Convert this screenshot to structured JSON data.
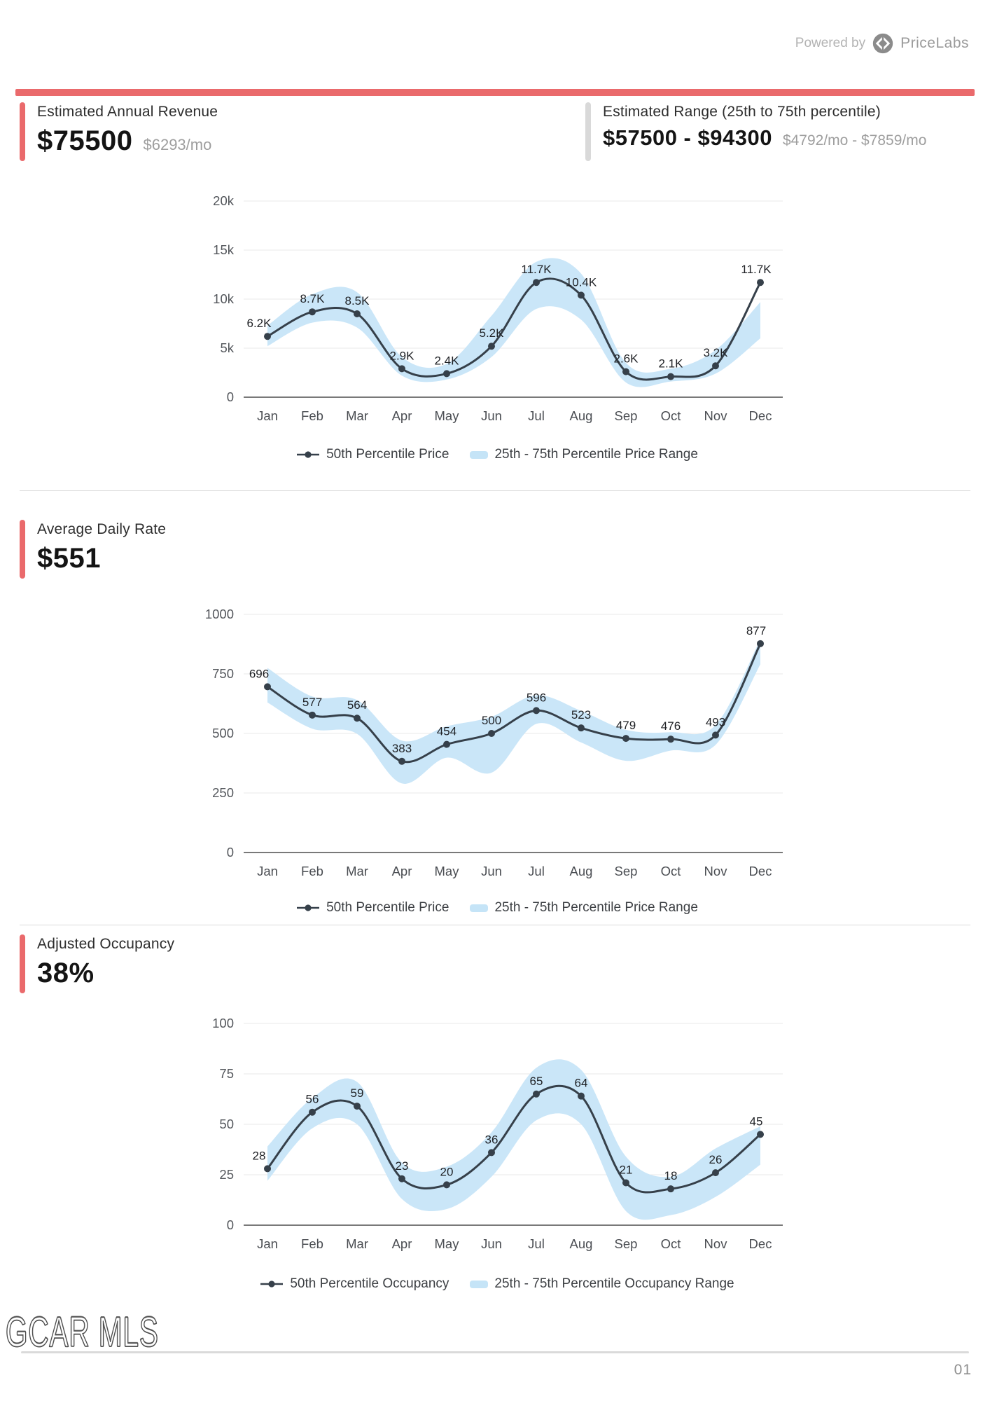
{
  "header": {
    "powered_by": "Powered by",
    "brand": "PriceLabs"
  },
  "metrics": {
    "revenue": {
      "title": "Estimated Annual Revenue",
      "value": "$75500",
      "sub": "$6293/mo"
    },
    "range": {
      "title": "Estimated Range (25th to 75th percentile)",
      "value": "$57500 - $94300",
      "sub": "$4792/mo - $7859/mo"
    },
    "adr": {
      "title": "Average Daily Rate",
      "value": "$551"
    },
    "occupancy": {
      "title": "Adjusted Occupancy",
      "value": "38%"
    }
  },
  "chart_data": [
    {
      "type": "line",
      "title": "Estimated Annual Revenue by month",
      "categories": [
        "Jan",
        "Feb",
        "Mar",
        "Apr",
        "May",
        "Jun",
        "Jul",
        "Aug",
        "Sep",
        "Oct",
        "Nov",
        "Dec"
      ],
      "series": [
        {
          "name": "50th Percentile Price",
          "values": [
            6200,
            8700,
            8500,
            2900,
            2400,
            5200,
            11700,
            10400,
            2600,
            2100,
            3200,
            11700
          ]
        }
      ],
      "point_labels": [
        "6.2K",
        "8.7K",
        "8.5K",
        "2.9K",
        "2.4K",
        "5.2K",
        "11.7K",
        "10.4K",
        "2.6K",
        "2.1K",
        "3.2K",
        "11.7K"
      ],
      "band": {
        "name": "25th - 75th Percentile Price Range",
        "lower": [
          5200,
          7600,
          7100,
          2200,
          1800,
          4100,
          9000,
          7900,
          1500,
          1600,
          2400,
          6000
        ],
        "upper": [
          7300,
          10500,
          10700,
          4100,
          3400,
          8300,
          13800,
          12600,
          3500,
          2900,
          4800,
          9700
        ]
      },
      "ylim": [
        0,
        20000
      ],
      "yticks": [
        {
          "value": 0,
          "label": "0"
        },
        {
          "value": 5000,
          "label": "5k"
        },
        {
          "value": 10000,
          "label": "10k"
        },
        {
          "value": 15000,
          "label": "15k"
        },
        {
          "value": 20000,
          "label": "20k"
        }
      ],
      "grid": true,
      "legend_position": "bottom",
      "legend": [
        "50th Percentile Price",
        "25th - 75th Percentile Price Range"
      ]
    },
    {
      "type": "line",
      "title": "Average Daily Rate by month",
      "categories": [
        "Jan",
        "Feb",
        "Mar",
        "Apr",
        "May",
        "Jun",
        "Jul",
        "Aug",
        "Sep",
        "Oct",
        "Nov",
        "Dec"
      ],
      "series": [
        {
          "name": "50th Percentile Price",
          "values": [
            696,
            577,
            564,
            383,
            454,
            500,
            596,
            523,
            479,
            476,
            493,
            877
          ]
        }
      ],
      "point_labels": [
        "696",
        "577",
        "564",
        "383",
        "454",
        "500",
        "596",
        "523",
        "479",
        "476",
        "493",
        "877"
      ],
      "band": {
        "name": "25th - 75th Percentile Price Range",
        "lower": [
          630,
          520,
          498,
          290,
          398,
          335,
          540,
          462,
          385,
          428,
          452,
          790
        ],
        "upper": [
          775,
          655,
          640,
          470,
          530,
          570,
          660,
          595,
          515,
          505,
          535,
          895
        ]
      },
      "ylim": [
        0,
        1000
      ],
      "yticks": [
        {
          "value": 0,
          "label": "0"
        },
        {
          "value": 250,
          "label": "250"
        },
        {
          "value": 500,
          "label": "500"
        },
        {
          "value": 750,
          "label": "750"
        },
        {
          "value": 1000,
          "label": "1000"
        }
      ],
      "grid": true,
      "legend_position": "bottom",
      "legend": [
        "50th Percentile Price",
        "25th - 75th Percentile Price Range"
      ]
    },
    {
      "type": "line",
      "title": "Adjusted Occupancy by month",
      "categories": [
        "Jan",
        "Feb",
        "Mar",
        "Apr",
        "May",
        "Jun",
        "Jul",
        "Aug",
        "Sep",
        "Oct",
        "Nov",
        "Dec"
      ],
      "series": [
        {
          "name": "50th Percentile Occupancy",
          "values": [
            28,
            56,
            59,
            23,
            20,
            36,
            65,
            64,
            21,
            18,
            26,
            45
          ]
        }
      ],
      "point_labels": [
        "28",
        "56",
        "59",
        "23",
        "20",
        "36",
        "65",
        "64",
        "21",
        "18",
        "26",
        "45"
      ],
      "band": {
        "name": "25th - 75th Percentile Occupancy Range",
        "lower": [
          22,
          48,
          50,
          13,
          8,
          24,
          52,
          50,
          7,
          5,
          14,
          30
        ],
        "upper": [
          39,
          63,
          71,
          31,
          29,
          46,
          78,
          77,
          34,
          24,
          38,
          49
        ]
      },
      "ylim": [
        0,
        100
      ],
      "yticks": [
        {
          "value": 0,
          "label": "0"
        },
        {
          "value": 25,
          "label": "25"
        },
        {
          "value": 50,
          "label": "50"
        },
        {
          "value": 75,
          "label": "75"
        },
        {
          "value": 100,
          "label": "100"
        }
      ],
      "grid": true,
      "legend_position": "bottom",
      "legend": [
        "50th Percentile Occupancy",
        "25th - 75th Percentile Occupancy Range"
      ]
    }
  ],
  "footer": {
    "watermark": "GCAR MLS",
    "page_number": "01"
  },
  "colors": {
    "accent": "#EA6A6C",
    "band": "#C5E4F7",
    "line": "#36404A",
    "grid": "#EAEAEA",
    "axis": "#555555",
    "muted": "#9E9E9E"
  }
}
